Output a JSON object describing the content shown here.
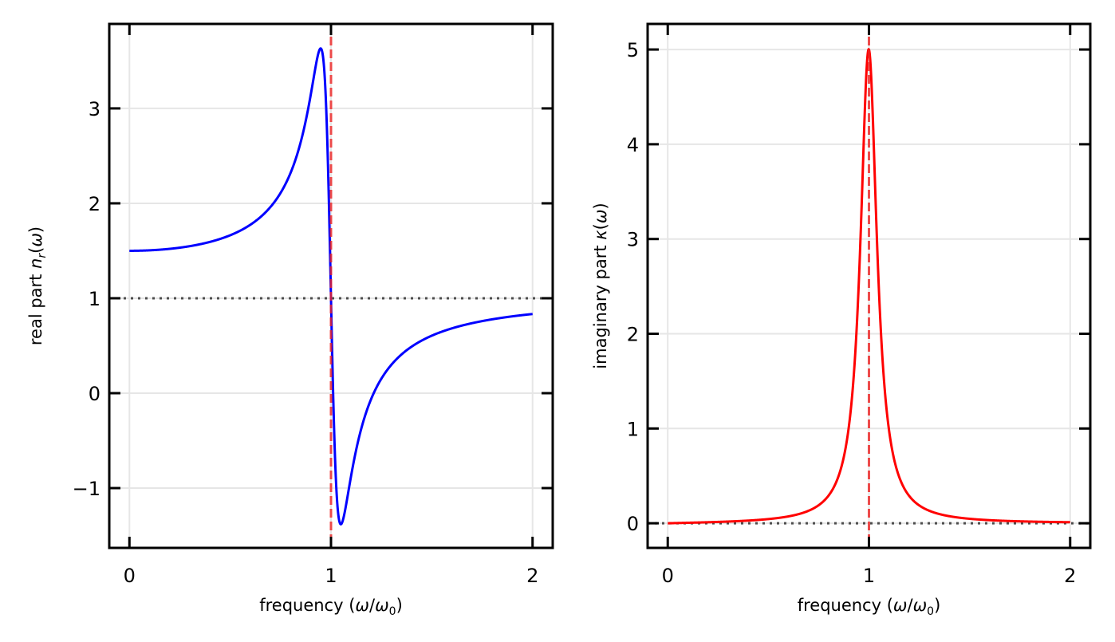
{
  "chart_data": [
    {
      "type": "line",
      "panel": "left",
      "title": "",
      "xlabel": "frequency (ω/ω0)",
      "xlabel_parts": [
        "frequency (",
        "ω",
        "/",
        "ω",
        "0",
        ")"
      ],
      "ylabel": "real part n_r(ω)",
      "ylabel_parts": [
        "real part ",
        "n",
        "r",
        "(",
        "ω",
        ")"
      ],
      "xlim": [
        -0.1,
        2.1
      ],
      "ylim": [
        -1.63,
        3.89
      ],
      "xticks": [
        0,
        1,
        2
      ],
      "xtick_labels": [
        "0",
        "1",
        "2"
      ],
      "yticks": [
        -1,
        0,
        1,
        2,
        3
      ],
      "ytick_labels": [
        "−1",
        "0",
        "1",
        "2",
        "3"
      ],
      "grid": true,
      "ticks_direction": "in",
      "series": [
        {
          "name": "n_r(ω)",
          "color": "#0000ff",
          "model": "1 + 0.5(1-ω²)/((1-ω²)² + (0.1ω)²)",
          "x": [
            0,
            0.2,
            0.4,
            0.5,
            0.6,
            0.7,
            0.8,
            0.85,
            0.9,
            0.93,
            0.947,
            0.96,
            0.98,
            1.0,
            1.02,
            1.045,
            1.07,
            1.1,
            1.15,
            1.2,
            1.3,
            1.4,
            1.5,
            1.6,
            1.8,
            2.0
          ],
          "y": [
            1.5,
            1.52,
            1.59,
            1.66,
            1.77,
            1.95,
            2.3,
            2.61,
            3.15,
            3.55,
            3.65,
            3.6,
            2.97,
            1.0,
            -0.94,
            -1.38,
            -1.21,
            -0.82,
            -0.38,
            -0.13,
            0.17,
            0.38,
            0.5,
            0.6,
            0.74,
            0.83
          ]
        }
      ],
      "reference_lines": [
        {
          "orientation": "horizontal",
          "value": 1,
          "style": "dotted",
          "color": "#333333"
        },
        {
          "orientation": "vertical",
          "value": 1,
          "style": "dashed",
          "color": "#ee2222"
        }
      ],
      "annotations": {
        "peak": {
          "x": 0.947,
          "y": 3.65
        },
        "trough": {
          "x": 1.045,
          "y": -1.38
        }
      }
    },
    {
      "type": "line",
      "panel": "right",
      "title": "",
      "xlabel": "frequency (ω/ω0)",
      "xlabel_parts": [
        "frequency (",
        "ω",
        "/",
        "ω",
        "0",
        ")"
      ],
      "ylabel": "imaginary part κ(ω)",
      "ylabel_parts": [
        "imaginary part ",
        "κ",
        "(",
        "ω",
        ")"
      ],
      "xlim": [
        -0.1,
        2.1
      ],
      "ylim": [
        -0.26,
        5.27
      ],
      "xticks": [
        0,
        1,
        2
      ],
      "xtick_labels": [
        "0",
        "1",
        "2"
      ],
      "yticks": [
        0,
        1,
        2,
        3,
        4,
        5
      ],
      "ytick_labels": [
        "0",
        "1",
        "2",
        "3",
        "4",
        "5"
      ],
      "grid": true,
      "ticks_direction": "in",
      "series": [
        {
          "name": "κ(ω)",
          "color": "#ff0000",
          "model": "0.05ω/((1-ω²)² + (0.1ω)²)",
          "x": [
            0,
            0.2,
            0.4,
            0.5,
            0.6,
            0.7,
            0.8,
            0.85,
            0.9,
            0.93,
            0.95,
            0.97,
            0.99,
            1.0,
            1.01,
            1.03,
            1.05,
            1.07,
            1.1,
            1.15,
            1.2,
            1.3,
            1.4,
            1.5,
            1.6,
            1.8,
            2.0
          ],
          "y": [
            0.0,
            0.011,
            0.028,
            0.044,
            0.073,
            0.133,
            0.29,
            0.49,
            1.09,
            1.95,
            2.86,
            4.14,
            4.95,
            5.0,
            4.9,
            3.84,
            2.61,
            1.78,
            1.04,
            0.51,
            0.3,
            0.13,
            0.073,
            0.047,
            0.032,
            0.018,
            0.011
          ]
        }
      ],
      "reference_lines": [
        {
          "orientation": "horizontal",
          "value": 0,
          "style": "dotted",
          "color": "#333333"
        },
        {
          "orientation": "vertical",
          "value": 1,
          "style": "dashed",
          "color": "#ee2222"
        }
      ],
      "annotations": {
        "peak": {
          "x": 1.0,
          "y": 5.03
        }
      }
    }
  ]
}
